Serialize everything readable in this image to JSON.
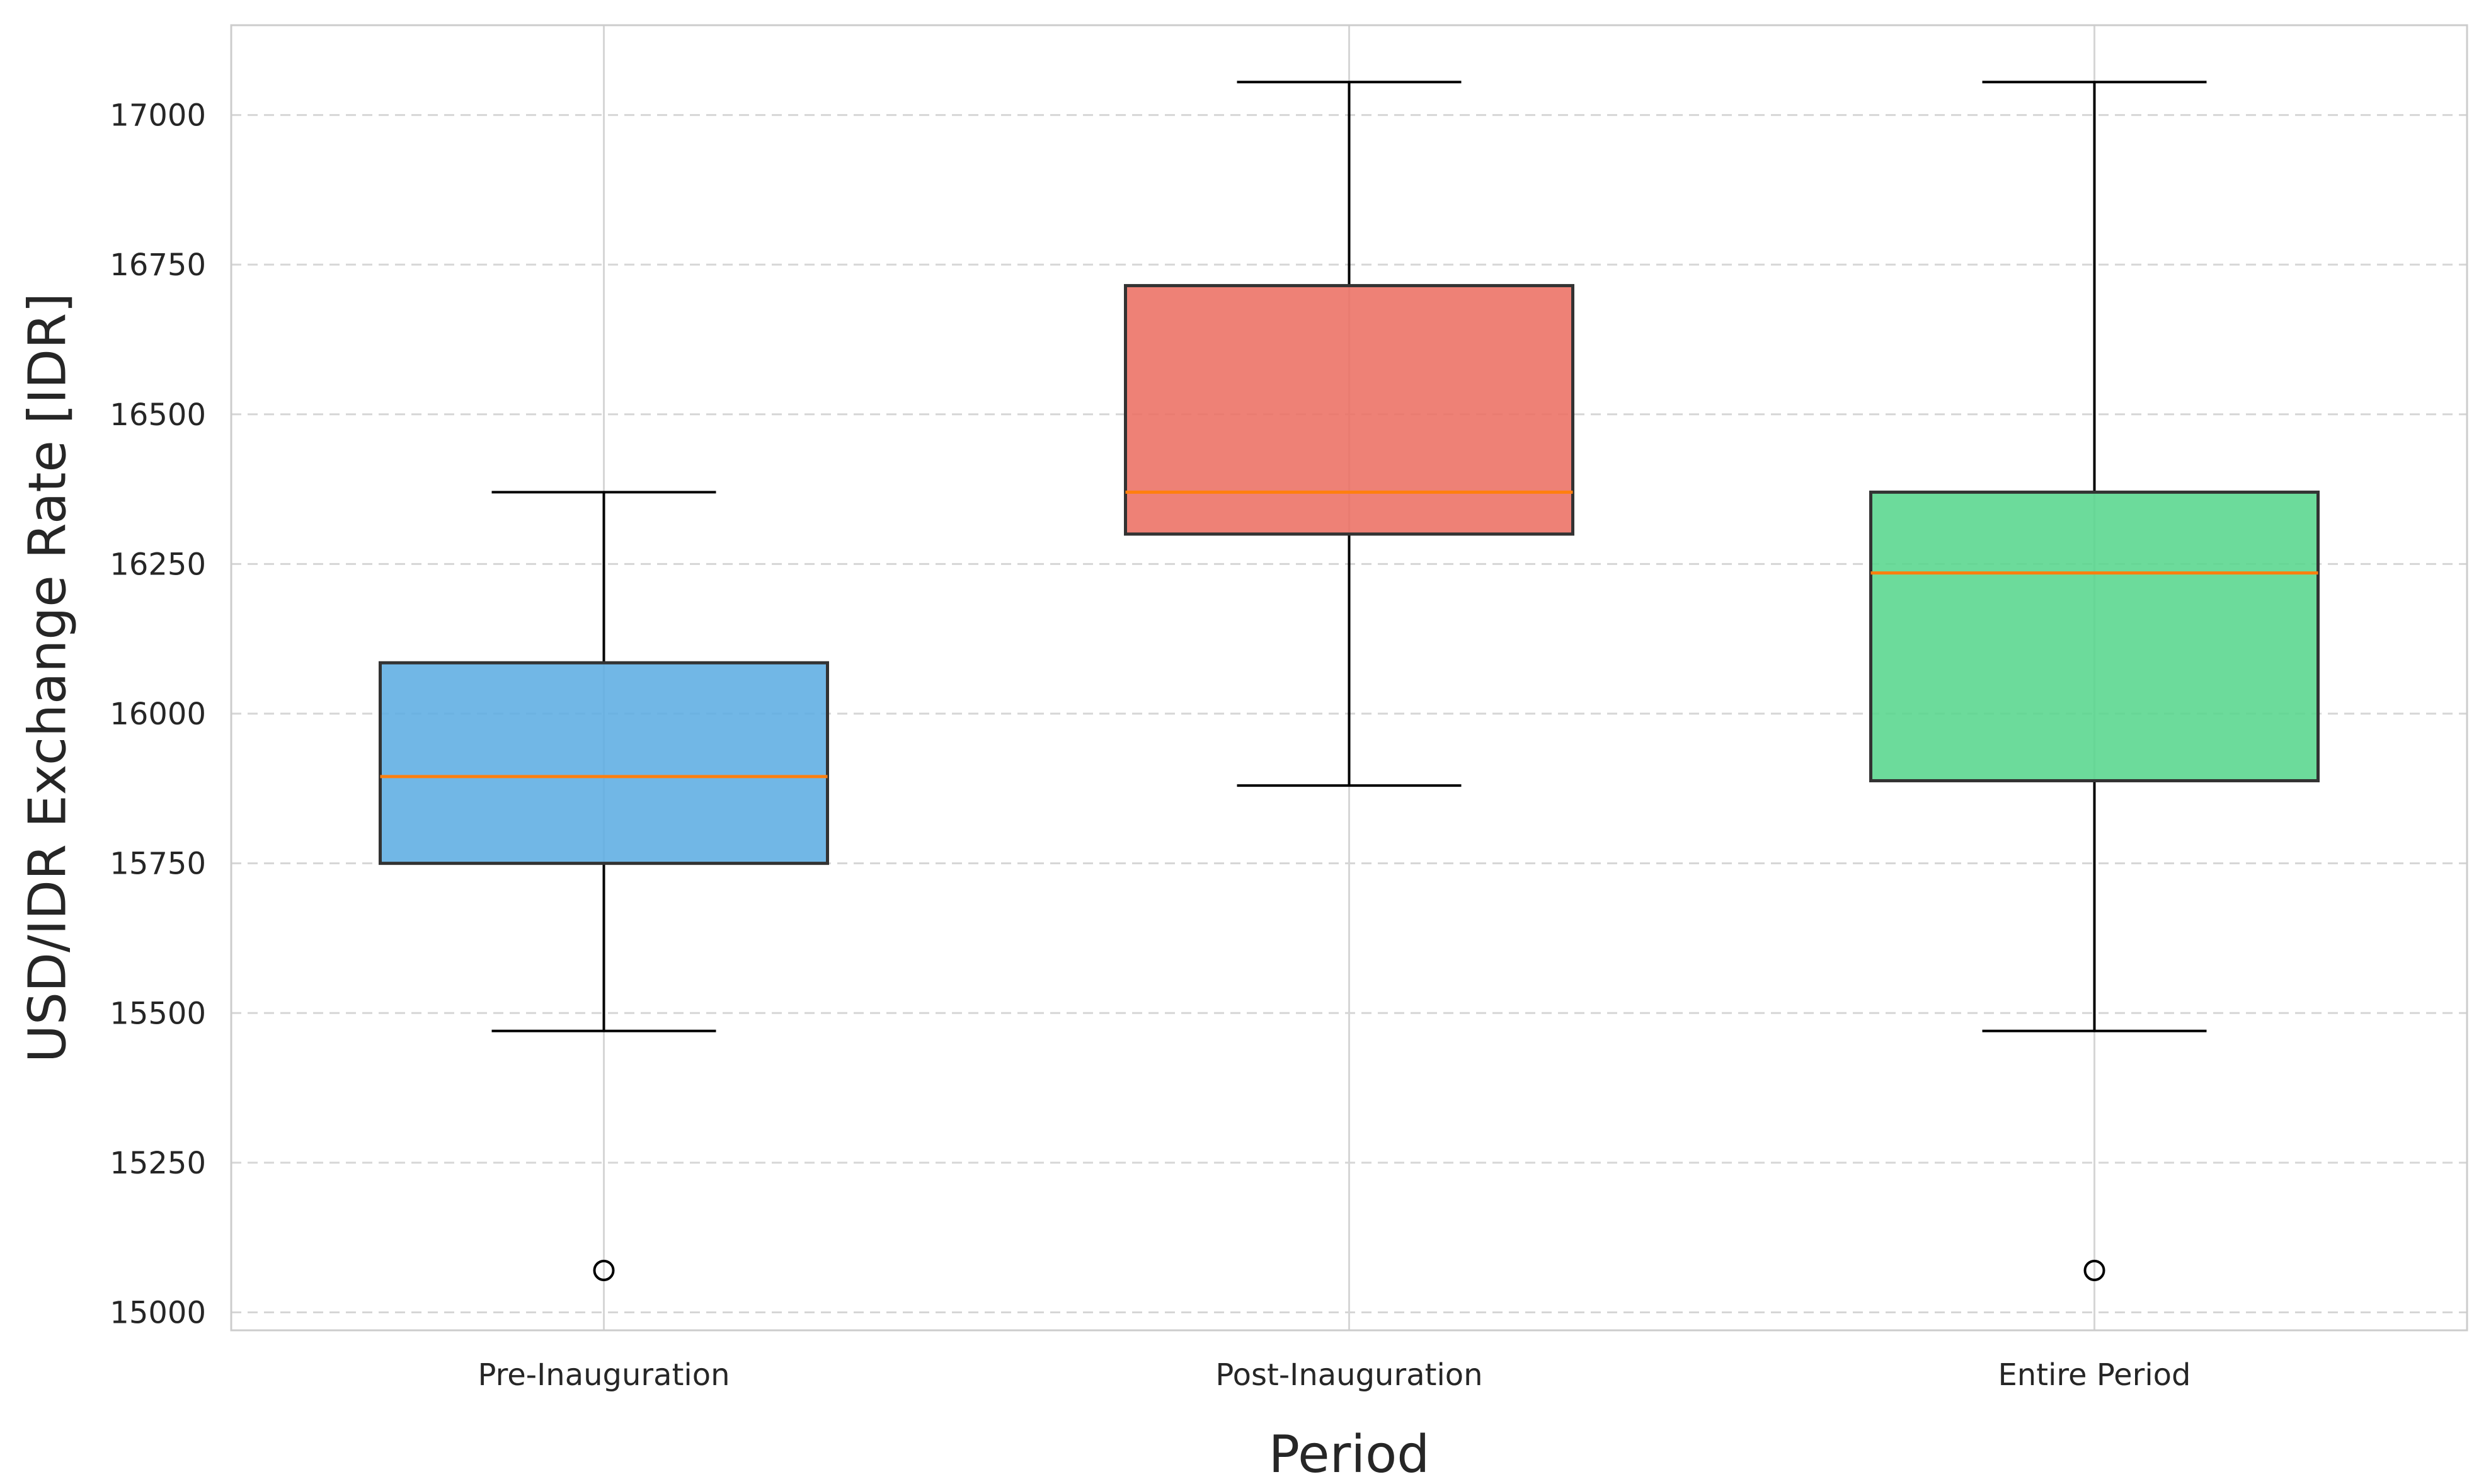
{
  "chart_data": {
    "type": "box",
    "xlabel": "Period",
    "ylabel": "USD/IDR Exchange Rate [IDR]",
    "ylim": [
      14970,
      17150
    ],
    "yticks": [
      15000,
      15250,
      15500,
      15750,
      16000,
      16250,
      16500,
      16750,
      17000
    ],
    "grid": {
      "x": true,
      "y": true,
      "y_style": "dashed"
    },
    "categories": [
      "Pre-Inauguration",
      "Post-Inauguration",
      "Entire Period"
    ],
    "boxes": [
      {
        "name": "Pre-Inauguration",
        "whisker_low": 15470,
        "q1": 15750,
        "median": 15895,
        "q3": 16085,
        "whisker_high": 16370,
        "outliers": [
          15070
        ],
        "color": "#5DADE2"
      },
      {
        "name": "Post-Inauguration",
        "whisker_low": 15880,
        "q1": 16300,
        "median": 16370,
        "q3": 16715,
        "whisker_high": 17055,
        "outliers": [],
        "color": "#EC7063"
      },
      {
        "name": "Entire Period",
        "whisker_low": 15470,
        "q1": 15888,
        "median": 16235,
        "q3": 16370,
        "whisker_high": 17055,
        "outliers": [
          15070
        ],
        "color": "#58D68D"
      }
    ],
    "median_color": "#FF7F0E"
  }
}
